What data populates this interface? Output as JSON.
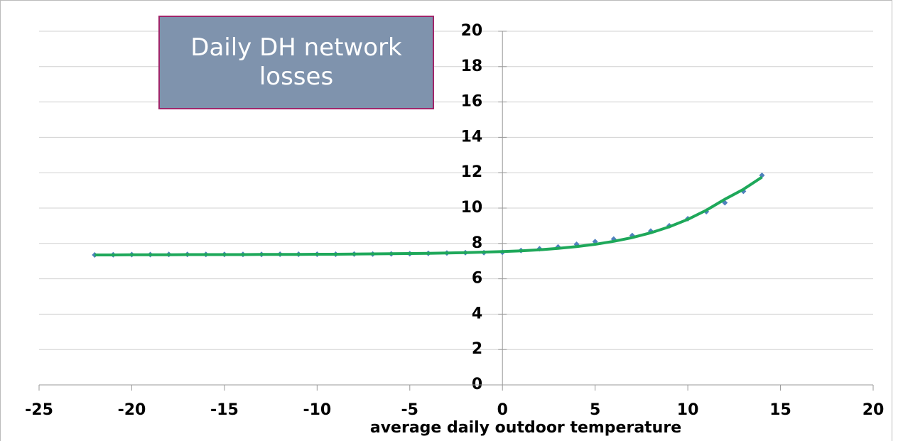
{
  "chart_data": {
    "type": "line",
    "title": "Daily DH network losses",
    "x_label": "average daily outdoor temperature",
    "x": [
      -22,
      -21,
      -20,
      -19,
      -18,
      -17,
      -16,
      -15,
      -14,
      -13,
      -12,
      -11,
      -10,
      -9,
      -8,
      -7,
      -6,
      -5,
      -4,
      -3,
      -2,
      -1,
      0,
      1,
      2,
      3,
      4,
      5,
      6,
      7,
      8,
      9,
      10,
      11,
      12,
      13,
      14
    ],
    "series": [
      {
        "color": "#4f81bd",
        "marker": "diamond",
        "values": [
          7.35,
          7.36,
          7.37,
          7.37,
          7.38,
          7.38,
          7.38,
          7.38,
          7.38,
          7.38,
          7.39,
          7.39,
          7.39,
          7.39,
          7.4,
          7.4,
          7.41,
          7.42,
          7.44,
          7.46,
          7.48,
          7.48,
          7.5,
          7.6,
          7.7,
          7.8,
          7.95,
          8.1,
          8.25,
          8.45,
          8.7,
          9.0,
          9.4,
          9.8,
          10.3,
          10.95,
          11.85
        ]
      },
      {
        "color": "#1ea85a",
        "marker": "none",
        "values": [
          7.35,
          7.35,
          7.36,
          7.36,
          7.36,
          7.37,
          7.37,
          7.37,
          7.37,
          7.38,
          7.38,
          7.38,
          7.39,
          7.39,
          7.4,
          7.41,
          7.42,
          7.43,
          7.44,
          7.46,
          7.48,
          7.51,
          7.54,
          7.58,
          7.64,
          7.72,
          7.82,
          7.95,
          8.12,
          8.33,
          8.6,
          8.94,
          9.36,
          9.88,
          10.5,
          11.06,
          11.75
        ]
      }
    ],
    "xlim": [
      -25,
      20
    ],
    "xticks": [
      -25,
      -20,
      -15,
      -10,
      -5,
      0,
      5,
      10,
      15,
      20
    ],
    "ylim": [
      0,
      20
    ],
    "yticks": [
      0,
      2,
      4,
      6,
      8,
      10,
      12,
      14,
      16,
      18,
      20
    ],
    "grid": true
  }
}
